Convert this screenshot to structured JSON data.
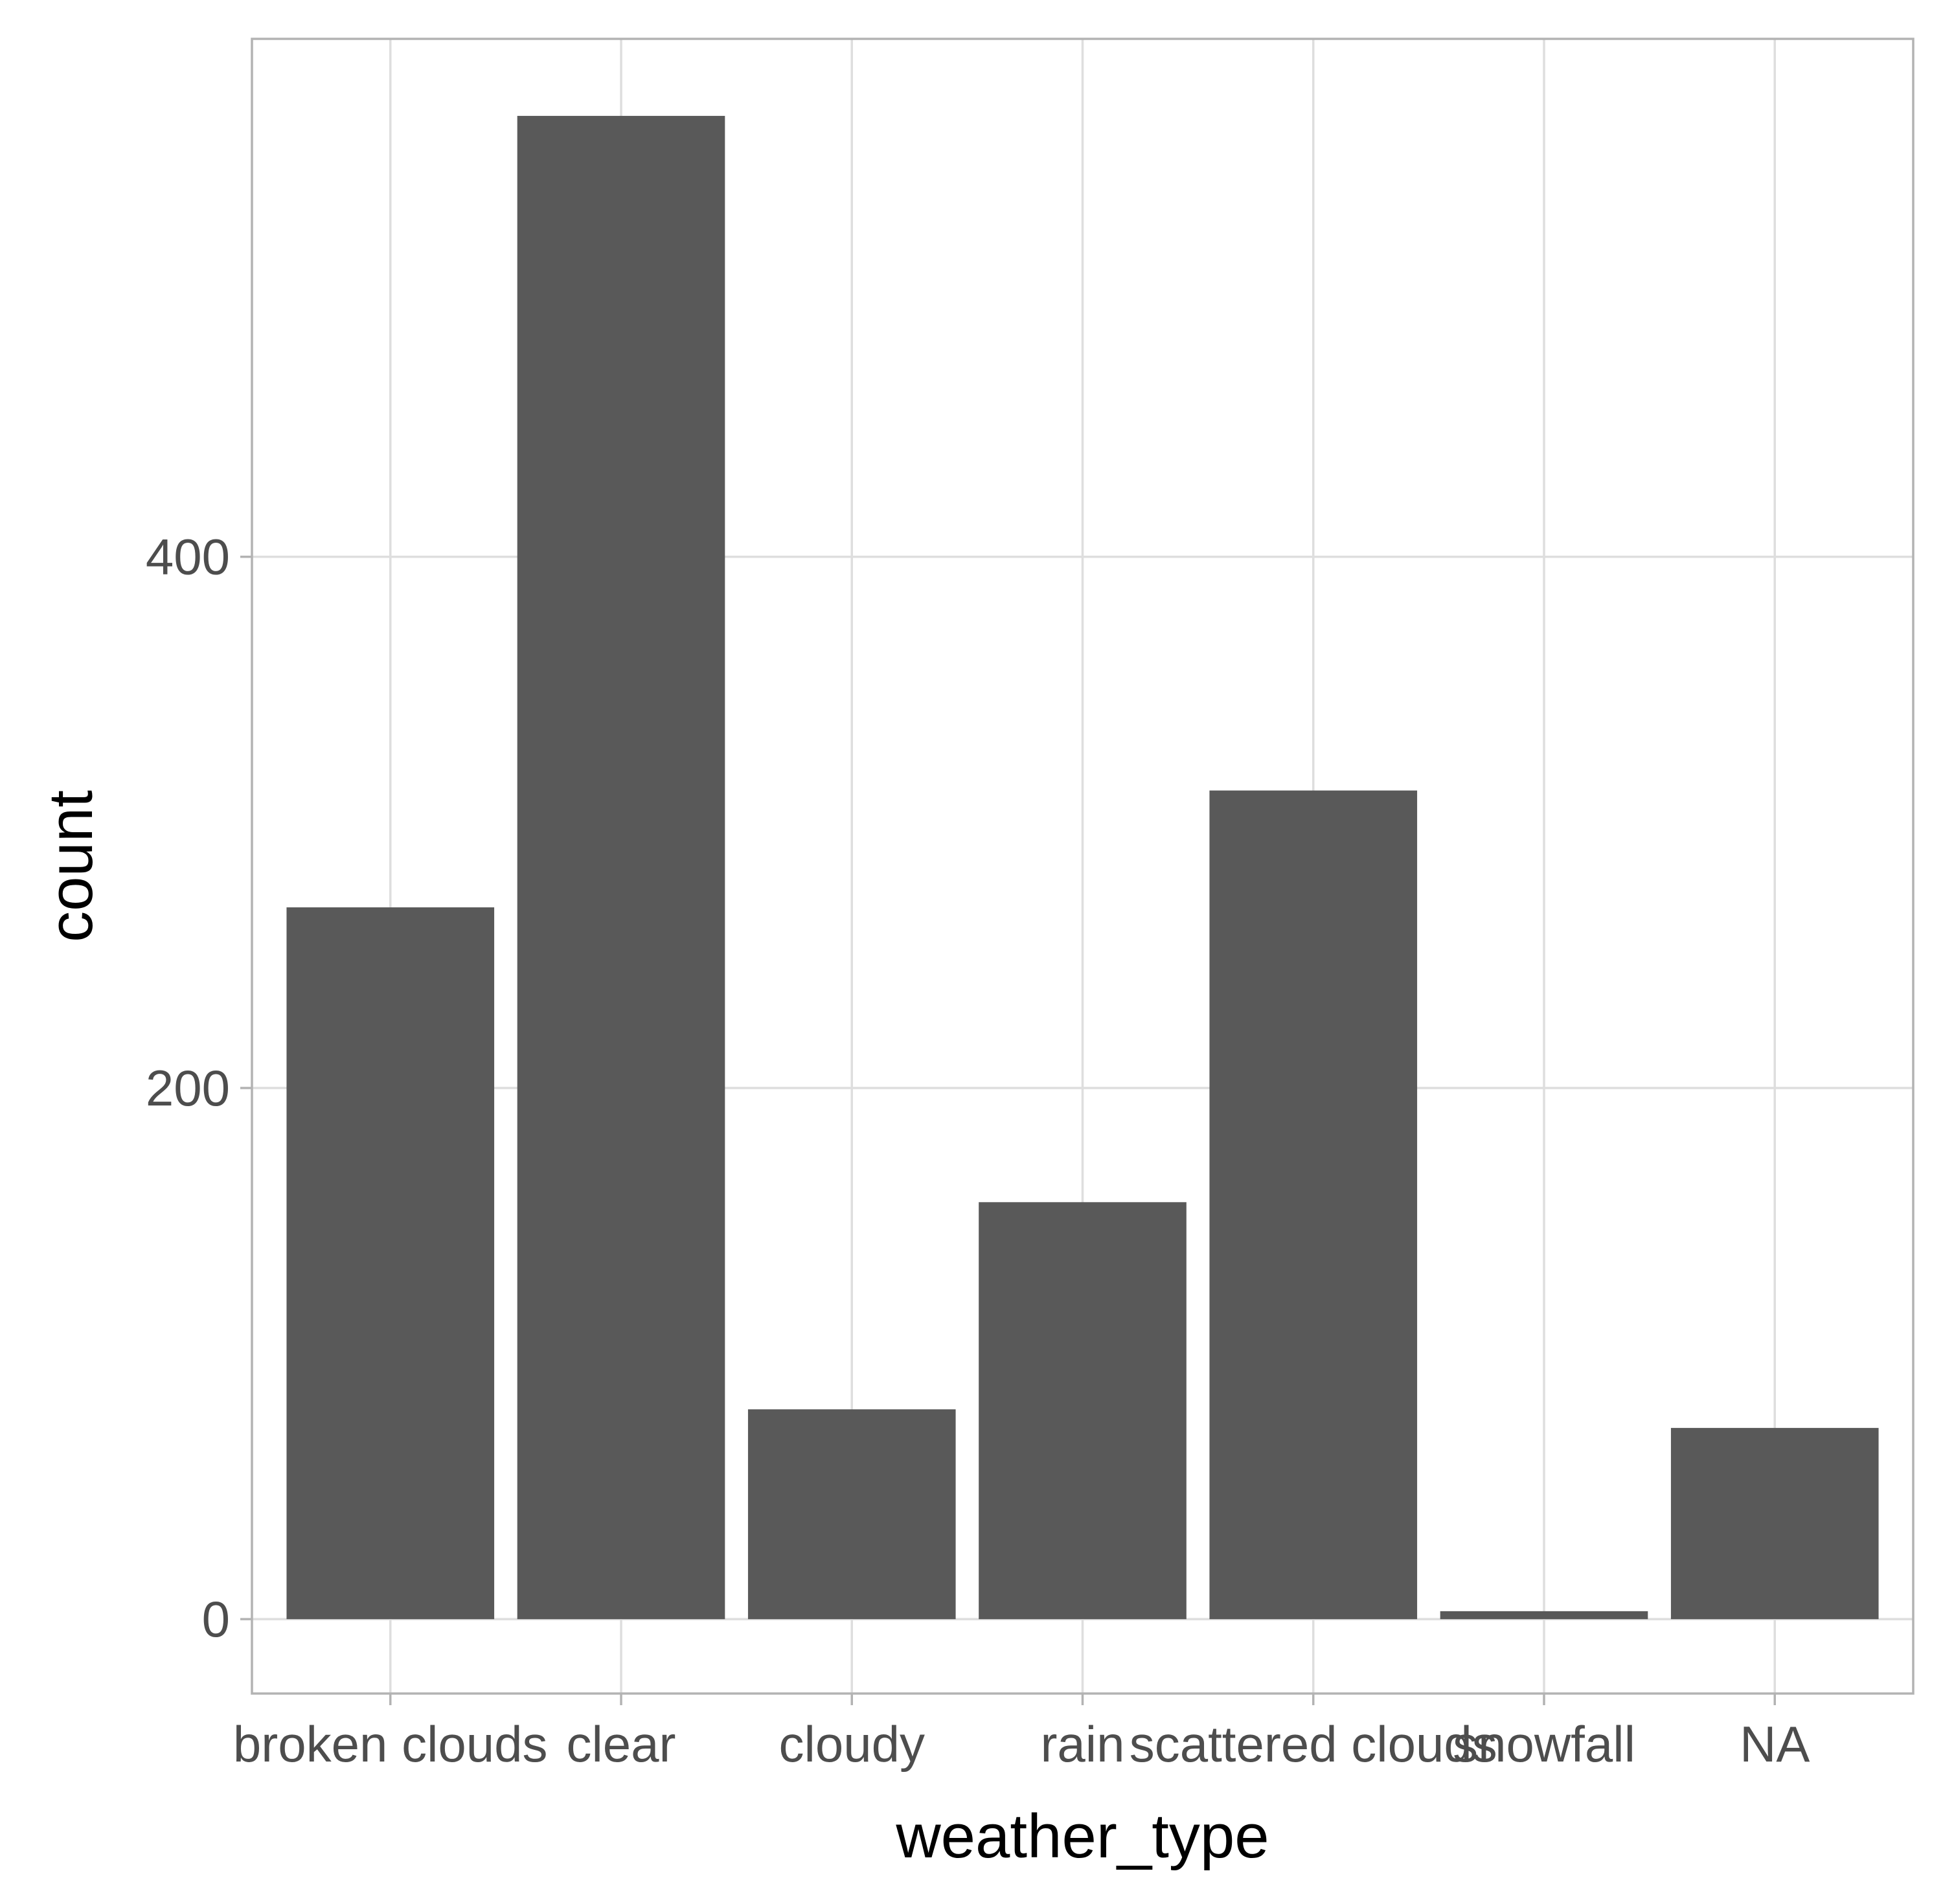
{
  "chart_data": {
    "type": "bar",
    "title": "",
    "xlabel": "weather_type",
    "ylabel": "count",
    "categories": [
      "broken clouds",
      "clear",
      "cloudy",
      "rain",
      "scattered clouds",
      "snowfall",
      "NA"
    ],
    "values": [
      268,
      566,
      79,
      157,
      312,
      3,
      72
    ],
    "ylim": [
      -28,
      595
    ],
    "yticks": [
      0,
      200,
      400
    ],
    "ytick_labels": [
      "0",
      "200",
      "400"
    ],
    "grid": true,
    "legend": "none",
    "colors": {
      "bar": "#595959",
      "grid": "#dedede",
      "panel_border": "#b3b3b3",
      "tick_label": "#4d4d4d",
      "axis_title": "#000000",
      "background": "#ffffff"
    }
  }
}
